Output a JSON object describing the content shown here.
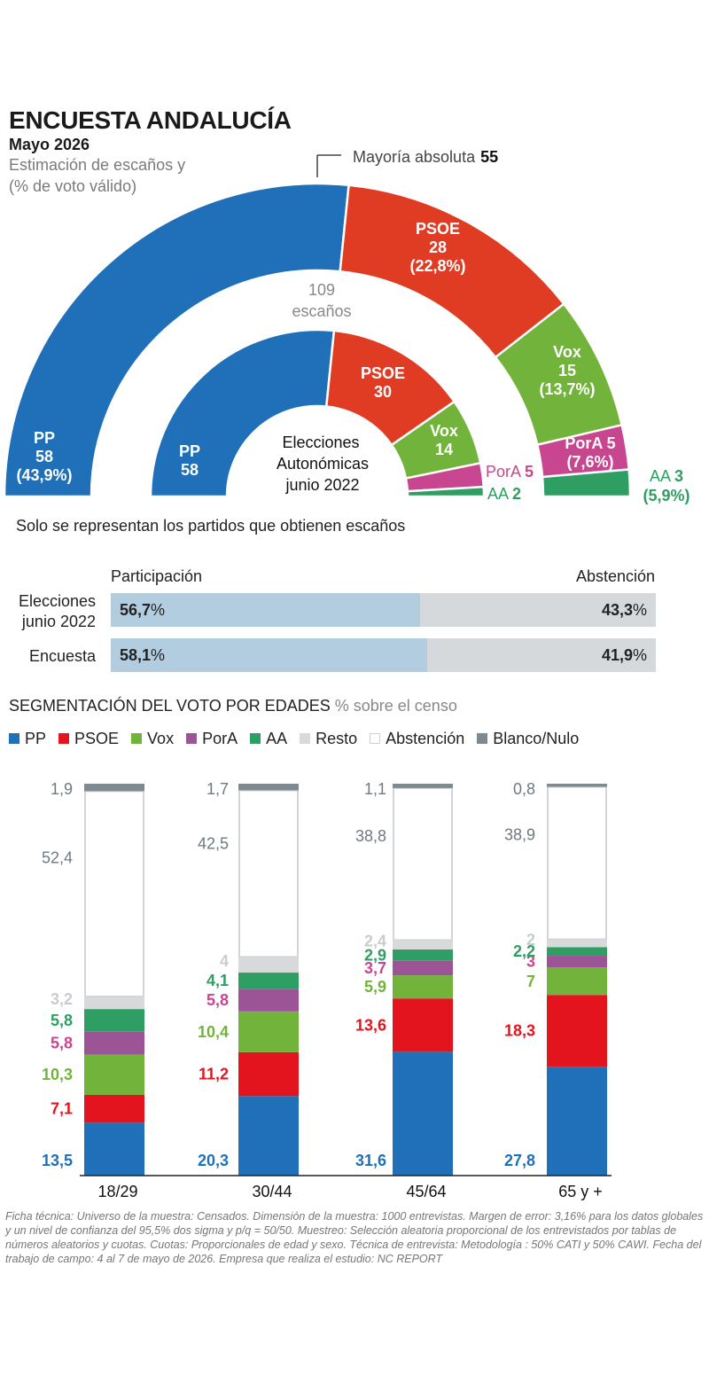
{
  "header": {
    "title": "ENCUESTA ANDALUCÍA",
    "subtitle": "Mayo 2026",
    "description_line1": "Estimación de escaños y",
    "description_line2": "(% de voto válido)"
  },
  "colors": {
    "PP": "#1f70b8",
    "PSOE": "#e03c24",
    "PSOE_segment": "#e3141e",
    "Vox": "#72b33b",
    "PorA": "#c8468f",
    "PorA_segment": "#9b5596",
    "AA": "#2f9e63",
    "Resto": "#d8d9da",
    "Abstencion": "#ffffff",
    "BlancoNulo": "#7f8a90",
    "majority_line": "#222222"
  },
  "majority": {
    "label": "Mayoría absoluta",
    "value": "55"
  },
  "total_seats": {
    "value": "109",
    "label": "escaños"
  },
  "inner_label": {
    "line1": "Elecciones",
    "line2": "Autonómicas",
    "line3": "junio 2022"
  },
  "note": "Solo se representan los partidos que obtienen escaños",
  "participation": {
    "left_header": "Participación",
    "right_header": "Abstención",
    "rows": [
      {
        "label_line1": "Elecciones",
        "label_line2": "junio 2022",
        "participation": 56.7,
        "participation_text": "56,7",
        "abstention_text": "43,3"
      },
      {
        "label_line1": "Encuesta",
        "label_line2": "",
        "participation": 58.1,
        "participation_text": "58,1",
        "abstention_text": "41,9"
      }
    ],
    "pct": "%"
  },
  "segment": {
    "title": "SEGMENTACIÓN DEL VOTO POR EDADES",
    "subtitle": "% sobre el censo"
  },
  "legend": [
    {
      "key": "PP",
      "label": "PP"
    },
    {
      "key": "PSOE",
      "label": "PSOE"
    },
    {
      "key": "Vox",
      "label": "Vox"
    },
    {
      "key": "PorA",
      "label": "PorA"
    },
    {
      "key": "AA",
      "label": "AA"
    },
    {
      "key": "Resto",
      "label": "Resto"
    },
    {
      "key": "Abstencion",
      "label": "Abstención"
    },
    {
      "key": "BlancoNulo",
      "label": "Blanco/Nulo"
    }
  ],
  "footer": "Ficha técnica: Universo de la muestra: Censados. Dimensión de la muestra: 1000 entrevistas. Margen de error: 3,16% para los datos globales y un nivel de confianza del 95,5% dos sigma y p/q = 50/50. Muestreo: Selección aleatoria proporcional de los entrevistados por tablas de números aleatorios y cuotas. Cuotas: Proporcionales de edad y sexo. Técnica de entrevista: Metodología : 50% CATI y 50% CAWI. Fecha del trabajo de campo: 4 al 7 de mayo de 2026. Empresa que realiza el estudio: NC REPORT",
  "chart_data": [
    {
      "type": "pie",
      "name": "Encuesta",
      "parties": [
        {
          "key": "PP",
          "name": "PP",
          "seats": 58,
          "seats_text": "58",
          "pct_text": "(43,9%)"
        },
        {
          "key": "PSOE",
          "name": "PSOE",
          "seats": 28,
          "seats_text": "28",
          "pct_text": "(22,8%)"
        },
        {
          "key": "Vox",
          "name": "Vox",
          "seats": 15,
          "seats_text": "15",
          "pct_text": "(13,7%)"
        },
        {
          "key": "PorA",
          "name": "PorA",
          "seats": 5,
          "seats_text": "5",
          "pct_text": "(7,6%)"
        },
        {
          "key": "AA",
          "name": "AA",
          "seats": 3,
          "seats_text": "3",
          "pct_text": "(5,9%)"
        }
      ]
    },
    {
      "type": "pie",
      "name": "Elecciones Autonómicas junio 2022",
      "parties": [
        {
          "key": "PP",
          "name": "PP",
          "seats": 58,
          "seats_text": "58"
        },
        {
          "key": "PSOE",
          "name": "PSOE",
          "seats": 30,
          "seats_text": "30"
        },
        {
          "key": "Vox",
          "name": "Vox",
          "seats": 14,
          "seats_text": "14"
        },
        {
          "key": "PorA",
          "name": "PorA",
          "seats": 5,
          "seats_text": "5"
        },
        {
          "key": "AA",
          "name": "AA",
          "seats": 2,
          "seats_text": "2"
        }
      ]
    },
    {
      "type": "bar",
      "name": "Segmentación del voto por edades",
      "categories": [
        "18/29",
        "30/44",
        "45/64",
        "65 y +"
      ],
      "series": [
        {
          "key": "PP",
          "values": [
            13.5,
            20.3,
            31.6,
            27.8
          ],
          "labels": [
            "13,5",
            "20,3",
            "31,6",
            "27,8"
          ]
        },
        {
          "key": "PSOE",
          "values": [
            7.1,
            11.2,
            13.6,
            18.3
          ],
          "labels": [
            "7,1",
            "11,2",
            "13,6",
            "18,3"
          ]
        },
        {
          "key": "Vox",
          "values": [
            10.3,
            10.4,
            5.9,
            7
          ],
          "labels": [
            "10,3",
            "10,4",
            "5,9",
            "7"
          ]
        },
        {
          "key": "PorA",
          "values": [
            5.8,
            5.8,
            3.7,
            3
          ],
          "labels": [
            "5,8",
            "5,8",
            "3,7",
            "3"
          ]
        },
        {
          "key": "AA",
          "values": [
            5.8,
            4.1,
            2.9,
            2.2
          ],
          "labels": [
            "5,8",
            "4,1",
            "2,9",
            "2,2"
          ]
        },
        {
          "key": "Resto",
          "values": [
            3.2,
            4,
            2.4,
            2
          ],
          "labels": [
            "3,2",
            "4",
            "2,4",
            "2"
          ]
        },
        {
          "key": "Abstencion",
          "values": [
            52.4,
            42.5,
            38.8,
            38.9
          ],
          "labels": [
            "52,4",
            "42,5",
            "38,8",
            "38,9"
          ]
        },
        {
          "key": "BlancoNulo",
          "values": [
            1.9,
            1.7,
            1.1,
            0.8
          ],
          "labels": [
            "1,9",
            "1,7",
            "1,1",
            "0,8"
          ]
        }
      ]
    }
  ]
}
